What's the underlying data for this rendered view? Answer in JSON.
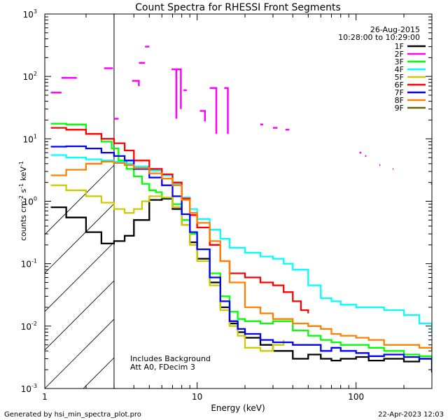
{
  "chart_data": {
    "type": "line",
    "title": "Count Spectra for RHESSI Front Segments",
    "xlabel": "Energy (keV)",
    "ylabel": "counts cm-2 s-1 keV-1",
    "xscale": "log",
    "yscale": "log",
    "xlim": [
      1.1,
      300
    ],
    "ylim": [
      0.001,
      1000
    ],
    "x_ticks": [
      {
        "value": 1,
        "label": "1"
      },
      {
        "value": 10,
        "label": "10"
      },
      {
        "value": 100,
        "label": "100"
      }
    ],
    "y_ticks": [
      {
        "value": 0.001,
        "base": "10",
        "exp": "-3"
      },
      {
        "value": 0.01,
        "base": "10",
        "exp": "-2"
      },
      {
        "value": 0.1,
        "base": "10",
        "exp": "-1"
      },
      {
        "value": 1,
        "base": "10",
        "exp": "0"
      },
      {
        "value": 10,
        "base": "10",
        "exp": "1"
      },
      {
        "value": 100,
        "base": "10",
        "exp": "2"
      },
      {
        "value": 1000,
        "base": "10",
        "exp": "3"
      }
    ],
    "attenuator_threshold_keV": 3,
    "date": "26-Aug-2015",
    "time_range": "10:28:00 to 10:29:00",
    "annotations": [
      "Includes Background",
      "Att A0, FDecim 3"
    ],
    "footer_left": "Generated by hsi_min_spectra_plot.pro",
    "footer_right": "22-Apr-2023 12:03",
    "series": [
      {
        "name": "1F",
        "color": "#000000",
        "x": [
          1.2,
          1.5,
          2,
          2.5,
          3,
          3.5,
          4,
          5,
          6,
          7,
          8,
          9,
          10,
          12,
          14,
          16,
          18,
          20,
          25,
          30,
          40,
          50,
          60,
          70,
          80,
          100,
          120,
          150,
          200,
          250,
          300
        ],
        "y": [
          0.8,
          0.55,
          0.32,
          0.21,
          0.23,
          0.28,
          0.5,
          1.05,
          1.1,
          0.75,
          0.42,
          0.22,
          0.12,
          0.05,
          0.02,
          0.011,
          0.008,
          0.0065,
          0.005,
          0.004,
          0.003,
          0.0035,
          0.003,
          0.0028,
          0.003,
          0.0032,
          0.0028,
          0.003,
          0.0027,
          0.003,
          0.0018
        ]
      },
      {
        "name": "2F",
        "color": "#ff00ff",
        "segments": [
          {
            "x": [
              1.2,
              1.4
            ],
            "y": [
              55,
              55
            ]
          },
          {
            "x": [
              1.4,
              1.75
            ],
            "y": [
              95,
              95
            ]
          },
          {
            "x": [
              2.6,
              2.95
            ],
            "y": [
              135,
              135
            ]
          },
          {
            "x": [
              3.0,
              3.2
            ],
            "y": [
              21,
              21
            ]
          },
          {
            "x": [
              3.9,
              4.3
            ],
            "y": [
              85,
              70
            ]
          },
          {
            "x": [
              4.3,
              4.7
            ],
            "y": [
              165,
              165
            ]
          },
          {
            "x": [
              4.7,
              5.0
            ],
            "y": [
              300,
              300
            ]
          },
          {
            "x": [
              6.9,
              7.4
            ],
            "y": [
              130,
              21
            ]
          },
          {
            "x": [
              7.4,
              7.9
            ],
            "y": [
              130,
              30
            ]
          },
          {
            "x": [
              8.2,
              8.6
            ],
            "y": [
              60,
              60
            ]
          },
          {
            "x": [
              10.4,
              11.2
            ],
            "y": [
              28,
              19
            ]
          },
          {
            "x": [
              12.0,
              13.2
            ],
            "y": [
              65,
              12
            ]
          },
          {
            "x": [
              14.8,
              15.6
            ],
            "y": [
              65,
              12
            ]
          },
          {
            "x": [
              25,
              26
            ],
            "y": [
              17,
              17
            ]
          },
          {
            "x": [
              30,
              32
            ],
            "y": [
              15,
              15
            ]
          },
          {
            "x": [
              36,
              38
            ],
            "y": [
              14,
              14
            ]
          },
          {
            "x": [
              105,
              108
            ],
            "y": [
              6,
              6
            ]
          },
          {
            "x": [
              114,
              116
            ],
            "y": [
              5.3,
              5.3
            ]
          },
          {
            "x": [
              140,
              142
            ],
            "y": [
              3.8,
              3.8
            ]
          },
          {
            "x": [
              170,
              172
            ],
            "y": [
              3.3,
              3.3
            ]
          },
          {
            "x": [
              296,
              300
            ],
            "y": [
              1.9,
              1.9
            ]
          }
        ]
      },
      {
        "name": "3F",
        "color": "#00ff00",
        "x": [
          1.2,
          1.5,
          2,
          2.5,
          2.9,
          3.2,
          3.6,
          4,
          4.5,
          5,
          5.5,
          6,
          7,
          8,
          9,
          10,
          12,
          14,
          16,
          18,
          20,
          25,
          30,
          40,
          50,
          60,
          70,
          80,
          100,
          120,
          150,
          200,
          250,
          300
        ],
        "y": [
          17.5,
          17,
          12,
          9,
          7,
          4.5,
          3.3,
          2.5,
          1.9,
          1.5,
          1.4,
          1.15,
          0.9,
          0.5,
          0.3,
          0.17,
          0.07,
          0.03,
          0.017,
          0.013,
          0.012,
          0.011,
          0.012,
          0.0085,
          0.007,
          0.006,
          0.0055,
          0.005,
          0.005,
          0.0045,
          0.004,
          0.0035,
          0.0033,
          0.0028
        ]
      },
      {
        "name": "4F",
        "color": "#00ffff",
        "x": [
          1.2,
          1.5,
          2,
          2.5,
          3,
          3.5,
          4,
          5,
          6,
          7,
          8,
          9,
          10,
          12,
          14,
          16,
          20,
          25,
          30,
          35,
          40,
          50,
          60,
          70,
          80,
          100,
          120,
          150,
          200,
          250,
          300
        ],
        "y": [
          5.5,
          5.0,
          4.7,
          4.5,
          4.3,
          4.0,
          3.6,
          3.1,
          2.6,
          1.9,
          1.15,
          0.75,
          0.52,
          0.35,
          0.25,
          0.18,
          0.15,
          0.13,
          0.12,
          0.1,
          0.08,
          0.045,
          0.028,
          0.025,
          0.022,
          0.02,
          0.02,
          0.018,
          0.015,
          0.011,
          0.008
        ]
      },
      {
        "name": "5F",
        "color": "#cccc00",
        "x": [
          1.2,
          1.5,
          2,
          2.5,
          3,
          3.5,
          4,
          4.5,
          5,
          6,
          7,
          8,
          9,
          10,
          12,
          14,
          16,
          18,
          20,
          25,
          30,
          35
        ],
        "y": [
          1.8,
          1.5,
          1.2,
          0.95,
          0.75,
          0.65,
          0.75,
          1.0,
          1.2,
          1.15,
          0.8,
          0.42,
          0.2,
          0.11,
          0.045,
          0.018,
          0.01,
          0.007,
          0.0045,
          0.004,
          0.005,
          0.006
        ]
      },
      {
        "name": "6F",
        "color": "#ff0000",
        "x": [
          1.2,
          1.5,
          2,
          2.5,
          3,
          3.5,
          4,
          5,
          6,
          7,
          8,
          9,
          10,
          12,
          14,
          16,
          20,
          25,
          30,
          35,
          40,
          45,
          50
        ],
        "y": [
          15,
          14,
          12,
          10,
          8.5,
          6.5,
          4.5,
          3.3,
          2.7,
          2.0,
          1.1,
          0.6,
          0.38,
          0.2,
          0.11,
          0.07,
          0.06,
          0.05,
          0.045,
          0.035,
          0.025,
          0.018,
          0.016
        ]
      },
      {
        "name": "7F",
        "color": "#0000ff",
        "x": [
          1.2,
          1.5,
          2,
          2.5,
          3,
          3.5,
          4,
          5,
          6,
          7,
          8,
          9,
          10,
          12,
          14,
          16,
          18,
          20,
          25,
          30,
          40,
          50,
          60,
          70,
          80,
          100,
          120,
          150,
          200,
          250,
          300
        ],
        "y": [
          7.5,
          7.6,
          7.0,
          6.0,
          5.3,
          4.5,
          3.3,
          2.4,
          1.8,
          1.2,
          0.62,
          0.32,
          0.17,
          0.06,
          0.025,
          0.012,
          0.009,
          0.0075,
          0.006,
          0.0055,
          0.005,
          0.005,
          0.004,
          0.0045,
          0.004,
          0.0037,
          0.0033,
          0.0035,
          0.0032,
          0.003,
          0.0028
        ]
      },
      {
        "name": "8F",
        "color": "#ff8000",
        "x": [
          1.2,
          1.5,
          2,
          2.5,
          3,
          3.5,
          4,
          5,
          6,
          7,
          8,
          9,
          10,
          12,
          14,
          16,
          20,
          25,
          30,
          40,
          50,
          60,
          70,
          80,
          100,
          120,
          150,
          200,
          250,
          300
        ],
        "y": [
          2.6,
          3.2,
          4.0,
          4.3,
          4.1,
          3.8,
          3.4,
          2.8,
          2.3,
          1.8,
          1.05,
          0.65,
          0.45,
          0.23,
          0.11,
          0.05,
          0.02,
          0.016,
          0.013,
          0.011,
          0.01,
          0.009,
          0.0075,
          0.007,
          0.0065,
          0.006,
          0.005,
          0.005,
          0.0045,
          0.004
        ]
      },
      {
        "name": "9F",
        "color": "#666600",
        "x": [],
        "y": []
      }
    ]
  }
}
